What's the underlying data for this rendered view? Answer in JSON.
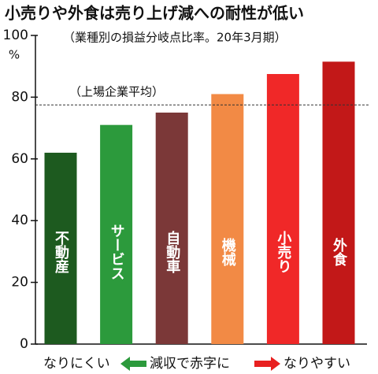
{
  "chart_data": {
    "type": "bar",
    "title": "小売りや外食は売り上げ減への耐性が低い",
    "subtitle": "（業種別の損益分岐点比率。20年3月期）",
    "y_unit": "%",
    "categories": [
      "不動産",
      "サービス",
      "自動車",
      "機械",
      "小売り",
      "外食"
    ],
    "values": [
      62,
      71,
      75,
      81,
      87.5,
      91.5
    ],
    "colors": [
      "#1d5a1f",
      "#2c9a3c",
      "#7b3838",
      "#f28a45",
      "#f02828",
      "#c21818"
    ],
    "ylim": [
      0,
      100
    ],
    "yticks": [
      0,
      20,
      40,
      60,
      80,
      100
    ],
    "reference": {
      "label": "（上場企業平均）",
      "value": 77.5
    },
    "footer": [
      "なりにくい",
      "減収で赤字に",
      "なりやすい"
    ]
  }
}
